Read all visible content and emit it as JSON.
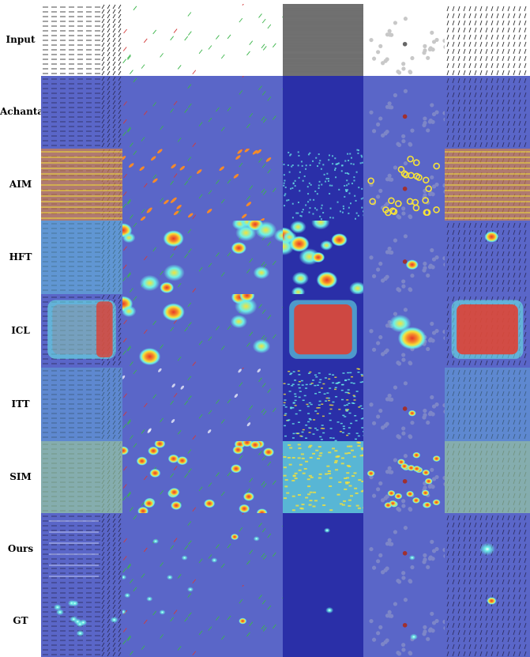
{
  "rows": [
    {
      "label": "Input",
      "key": "input"
    },
    {
      "label": "Achanta",
      "key": "achanta"
    },
    {
      "label": "AIM",
      "key": "aim"
    },
    {
      "label": "HFT",
      "key": "hft"
    },
    {
      "label": "ICL",
      "key": "icl"
    },
    {
      "label": "ITT",
      "key": "itt"
    },
    {
      "label": "SIM",
      "key": "sim"
    },
    {
      "label": "Ours",
      "key": "ours"
    },
    {
      "label": "GT",
      "key": "gt"
    }
  ],
  "columns": [
    {
      "key": "bars-grid"
    },
    {
      "key": "sparse-bars"
    },
    {
      "key": "gray-texture"
    },
    {
      "key": "dots-circle"
    },
    {
      "key": "oriented-lines"
    }
  ],
  "colors": {
    "overlay_blue": "#5a66c8",
    "deep_blue": "#2a2fa8",
    "heat_red": "#e53a2a",
    "heat_yellow": "#f5e23a",
    "heat_cyan": "#6cf0e8",
    "heat_orange": "#f58a2a",
    "line_dark": "#1a1a1a",
    "line_green": "#3bb54a",
    "line_red": "#d43a3a",
    "gray_bg": "#6f6f6f"
  }
}
